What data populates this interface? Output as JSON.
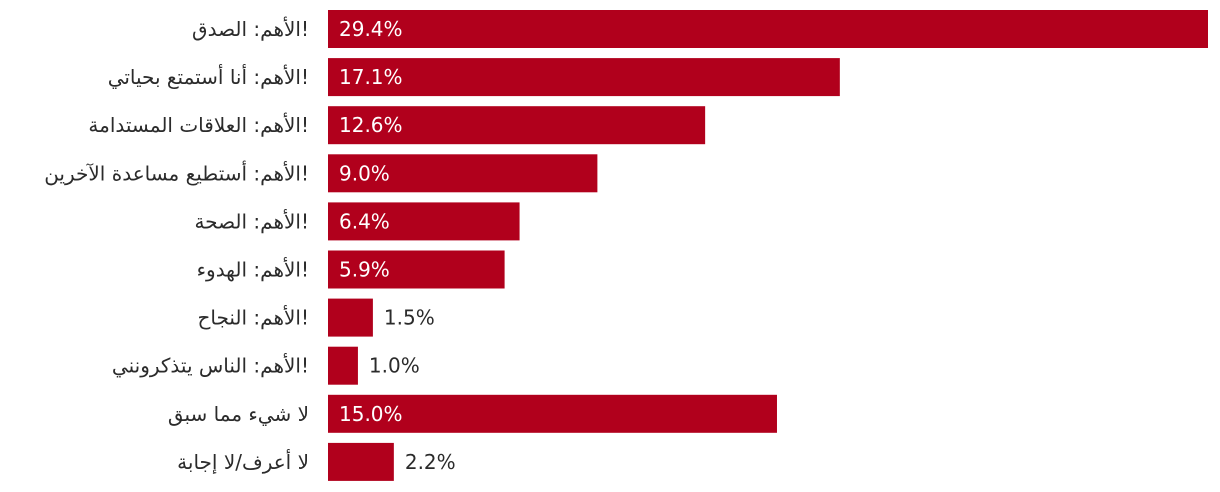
{
  "chart_data": {
    "type": "bar",
    "orientation": "horizontal",
    "bar_color": "#b1001c",
    "categories": [
      "!الأهم: الصدق",
      "!الأهم: أنا أستمتع بحياتي",
      "!الأهم: العلاقات المستدامة",
      "!الأهم: أستطيع مساعدة الآخرين",
      "!الأهم: الصحة",
      "!الأهم: الهدوء",
      "!الأهم: النجاح",
      "!الأهم: الناس يتذكرونني",
      "لا شيء مما سبق",
      "لا أعرف/لا إجابة"
    ],
    "values": [
      29.4,
      17.1,
      12.6,
      9.0,
      6.4,
      5.9,
      1.5,
      1.0,
      15.0,
      2.2
    ],
    "value_labels": [
      "29.4%",
      "17.1%",
      "12.6%",
      "9.0%",
      "6.4%",
      "5.9%",
      "1.5%",
      "1.0%",
      "15.0%",
      "2.2%"
    ],
    "xlim": [
      0,
      29.4
    ],
    "title": "",
    "xlabel": "",
    "ylabel": "",
    "grid": false,
    "legend": "none"
  }
}
